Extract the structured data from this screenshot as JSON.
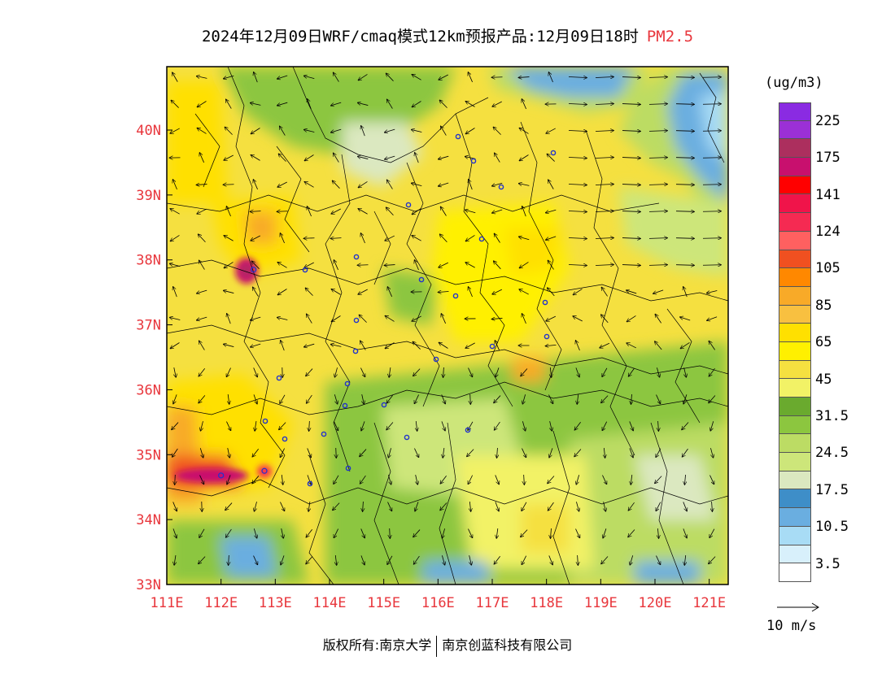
{
  "header": {
    "title": "2024年12月09日WRF/cmaq模式12km预报产品:12月09日18时",
    "pollutant": "PM2.5"
  },
  "map": {
    "lon_labels": [
      "111E",
      "112E",
      "113E",
      "114E",
      "115E",
      "116E",
      "117E",
      "118E",
      "119E",
      "120E",
      "121E"
    ],
    "lat_labels": [
      "33N",
      "34N",
      "35N",
      "36N",
      "37N",
      "38N",
      "39N",
      "40N"
    ],
    "hotspots": [
      {
        "lon": 112.6,
        "lat": 37.85,
        "value": 141
      },
      {
        "lon": 112.0,
        "lat": 34.68,
        "value": 124
      },
      {
        "lon": 112.8,
        "lat": 34.75,
        "value": 105
      }
    ]
  },
  "legend": {
    "units": "(ug/m3)",
    "colors": [
      "#8a2be2",
      "#9b30d6",
      "#ac2f5e",
      "#c8106e",
      "#ff0000",
      "#f0144a",
      "#f52a52",
      "#ff6060",
      "#f05020",
      "#ff8800",
      "#f8aa28",
      "#f8c040",
      "#ffe000",
      "#fff000",
      "#f5e040",
      "#f2f266",
      "#6aaa2e",
      "#8cc63f",
      "#bcdc64",
      "#cde67a",
      "#dbe8c0",
      "#3e8ec8",
      "#6aaee0",
      "#a8dcf5",
      "#d8f0fb",
      "#ffffff"
    ],
    "labels": [
      "225",
      "175",
      "141",
      "124",
      "105",
      "85",
      "65",
      "45",
      "31.5",
      "24.5",
      "17.5",
      "10.5",
      "3.5"
    ],
    "wind_scale_label": "10 m/s"
  },
  "footer": {
    "copyright_prefix": "版权所有:",
    "org1": "南京大学",
    "org2": "南京创蓝科技有限公司"
  }
}
